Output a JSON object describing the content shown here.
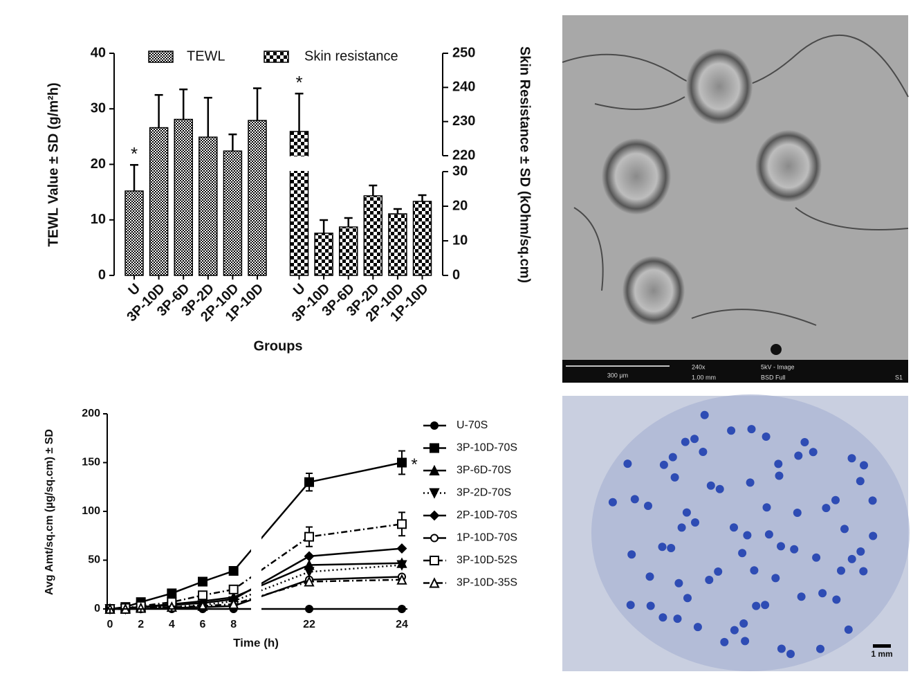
{
  "chart_data": [
    {
      "type": "bar",
      "categories": [
        "U",
        "3P-10D",
        "3P-6D",
        "3P-2D",
        "2P-10D",
        "1P-10D",
        "U",
        "3P-10D",
        "3P-6D",
        "3P-2D",
        "2P-10D",
        "1P-10D"
      ],
      "series": [
        {
          "name": "TEWL",
          "color": "#000000",
          "axis": "y",
          "values": [
            15.2,
            26.6,
            28.1,
            24.9,
            22.4,
            27.9,
            null,
            null,
            null,
            null,
            null,
            null
          ],
          "errors": [
            4.7,
            5.9,
            5.4,
            7.1,
            3.0,
            5.8,
            null,
            null,
            null,
            null,
            null,
            null
          ],
          "markers": [
            "*",
            null,
            null,
            null,
            null,
            null,
            null,
            null,
            null,
            null,
            null,
            null
          ]
        },
        {
          "name": "Skin resistance",
          "color": "#000000",
          "axis": "y2",
          "values": [
            null,
            null,
            null,
            null,
            null,
            null,
            227.1,
            12.2,
            14,
            23,
            17.8,
            21.4
          ],
          "errors": [
            null,
            null,
            null,
            null,
            null,
            null,
            11.1,
            3.8,
            2.6,
            3,
            1.4,
            1.8
          ],
          "markers": [
            null,
            null,
            null,
            null,
            null,
            null,
            "*",
            null,
            null,
            null,
            null,
            null
          ]
        }
      ],
      "ylim": [
        0,
        40
      ],
      "yticks": [
        0,
        10,
        20,
        30,
        40
      ],
      "y2lim": [
        0,
        250
      ],
      "y2break": [
        30,
        220
      ],
      "y2ticks": [
        0,
        10,
        20,
        30,
        220,
        230,
        240,
        250
      ],
      "ylabel": "TEWL Value ± SD (g/m²h)",
      "y2label": "Skin Resistance ± SD (kOhm/sq.cm)",
      "xlabel": "Groups",
      "legend": "top"
    },
    {
      "type": "line",
      "x": [
        0,
        1,
        2,
        4,
        6,
        8,
        22,
        24
      ],
      "series": [
        {
          "name": "U-70S",
          "color": "#000000",
          "marker": "circle",
          "open": false,
          "dash": "solid",
          "values": [
            0,
            0,
            0,
            0,
            0,
            0,
            0,
            0
          ]
        },
        {
          "name": "3P-10D-70S",
          "color": "#000000",
          "marker": "square",
          "open": false,
          "dash": "solid",
          "values": [
            0,
            2,
            7,
            16,
            28,
            39,
            130,
            150
          ],
          "errors": [
            0,
            0,
            1,
            2,
            3,
            4,
            9,
            12
          ],
          "annotation": "*"
        },
        {
          "name": "3P-6D-70S",
          "color": "#000000",
          "marker": "triangle",
          "open": false,
          "dash": "solid",
          "values": [
            0,
            1,
            2,
            5,
            8,
            12,
            45,
            47
          ]
        },
        {
          "name": "3P-2D-70S",
          "color": "#000000",
          "marker": "triangle-down",
          "open": false,
          "dash": "dotted",
          "values": [
            0,
            0,
            1,
            2,
            4,
            8,
            38,
            45
          ]
        },
        {
          "name": "2P-10D-70S",
          "color": "#000000",
          "marker": "diamond",
          "open": false,
          "dash": "solid",
          "values": [
            0,
            1,
            2,
            4,
            6,
            10,
            54,
            62
          ]
        },
        {
          "name": "1P-10D-70S",
          "color": "#000000",
          "marker": "circle",
          "open": true,
          "dash": "solid",
          "values": [
            0,
            0,
            0,
            1,
            2,
            3,
            30,
            33
          ]
        },
        {
          "name": "3P-10D-52S",
          "color": "#000000",
          "marker": "square",
          "open": true,
          "dash": "dashdot",
          "values": [
            0,
            1,
            3,
            7,
            14,
            20,
            74,
            87
          ],
          "errors": [
            0,
            0,
            1,
            2,
            3,
            4,
            10,
            12
          ]
        },
        {
          "name": "3P-10D-35S",
          "color": "#000000",
          "marker": "triangle",
          "open": true,
          "dash": "dashdot",
          "values": [
            0,
            0,
            1,
            2,
            3,
            5,
            28,
            30
          ]
        }
      ],
      "xlim": [
        0,
        24
      ],
      "xbreak": [
        9,
        21
      ],
      "xticks": [
        0,
        2,
        4,
        6,
        8,
        22,
        24
      ],
      "ylim": [
        0,
        200
      ],
      "yticks": [
        0,
        50,
        100,
        150,
        200
      ],
      "xlabel": "Time (h)",
      "ylabel": "Avg Amt/sq.cm (µg/sq.cm) ± SD",
      "legend": "right"
    }
  ],
  "images": {
    "sem": {
      "scale_bar": "300 µm",
      "magnification": "240x",
      "working_distance": "1.00 mm",
      "mode": "5kV - Image",
      "detector": "BSD Full",
      "label": "S1"
    },
    "stain": {
      "scale_bar": "1 mm"
    }
  }
}
